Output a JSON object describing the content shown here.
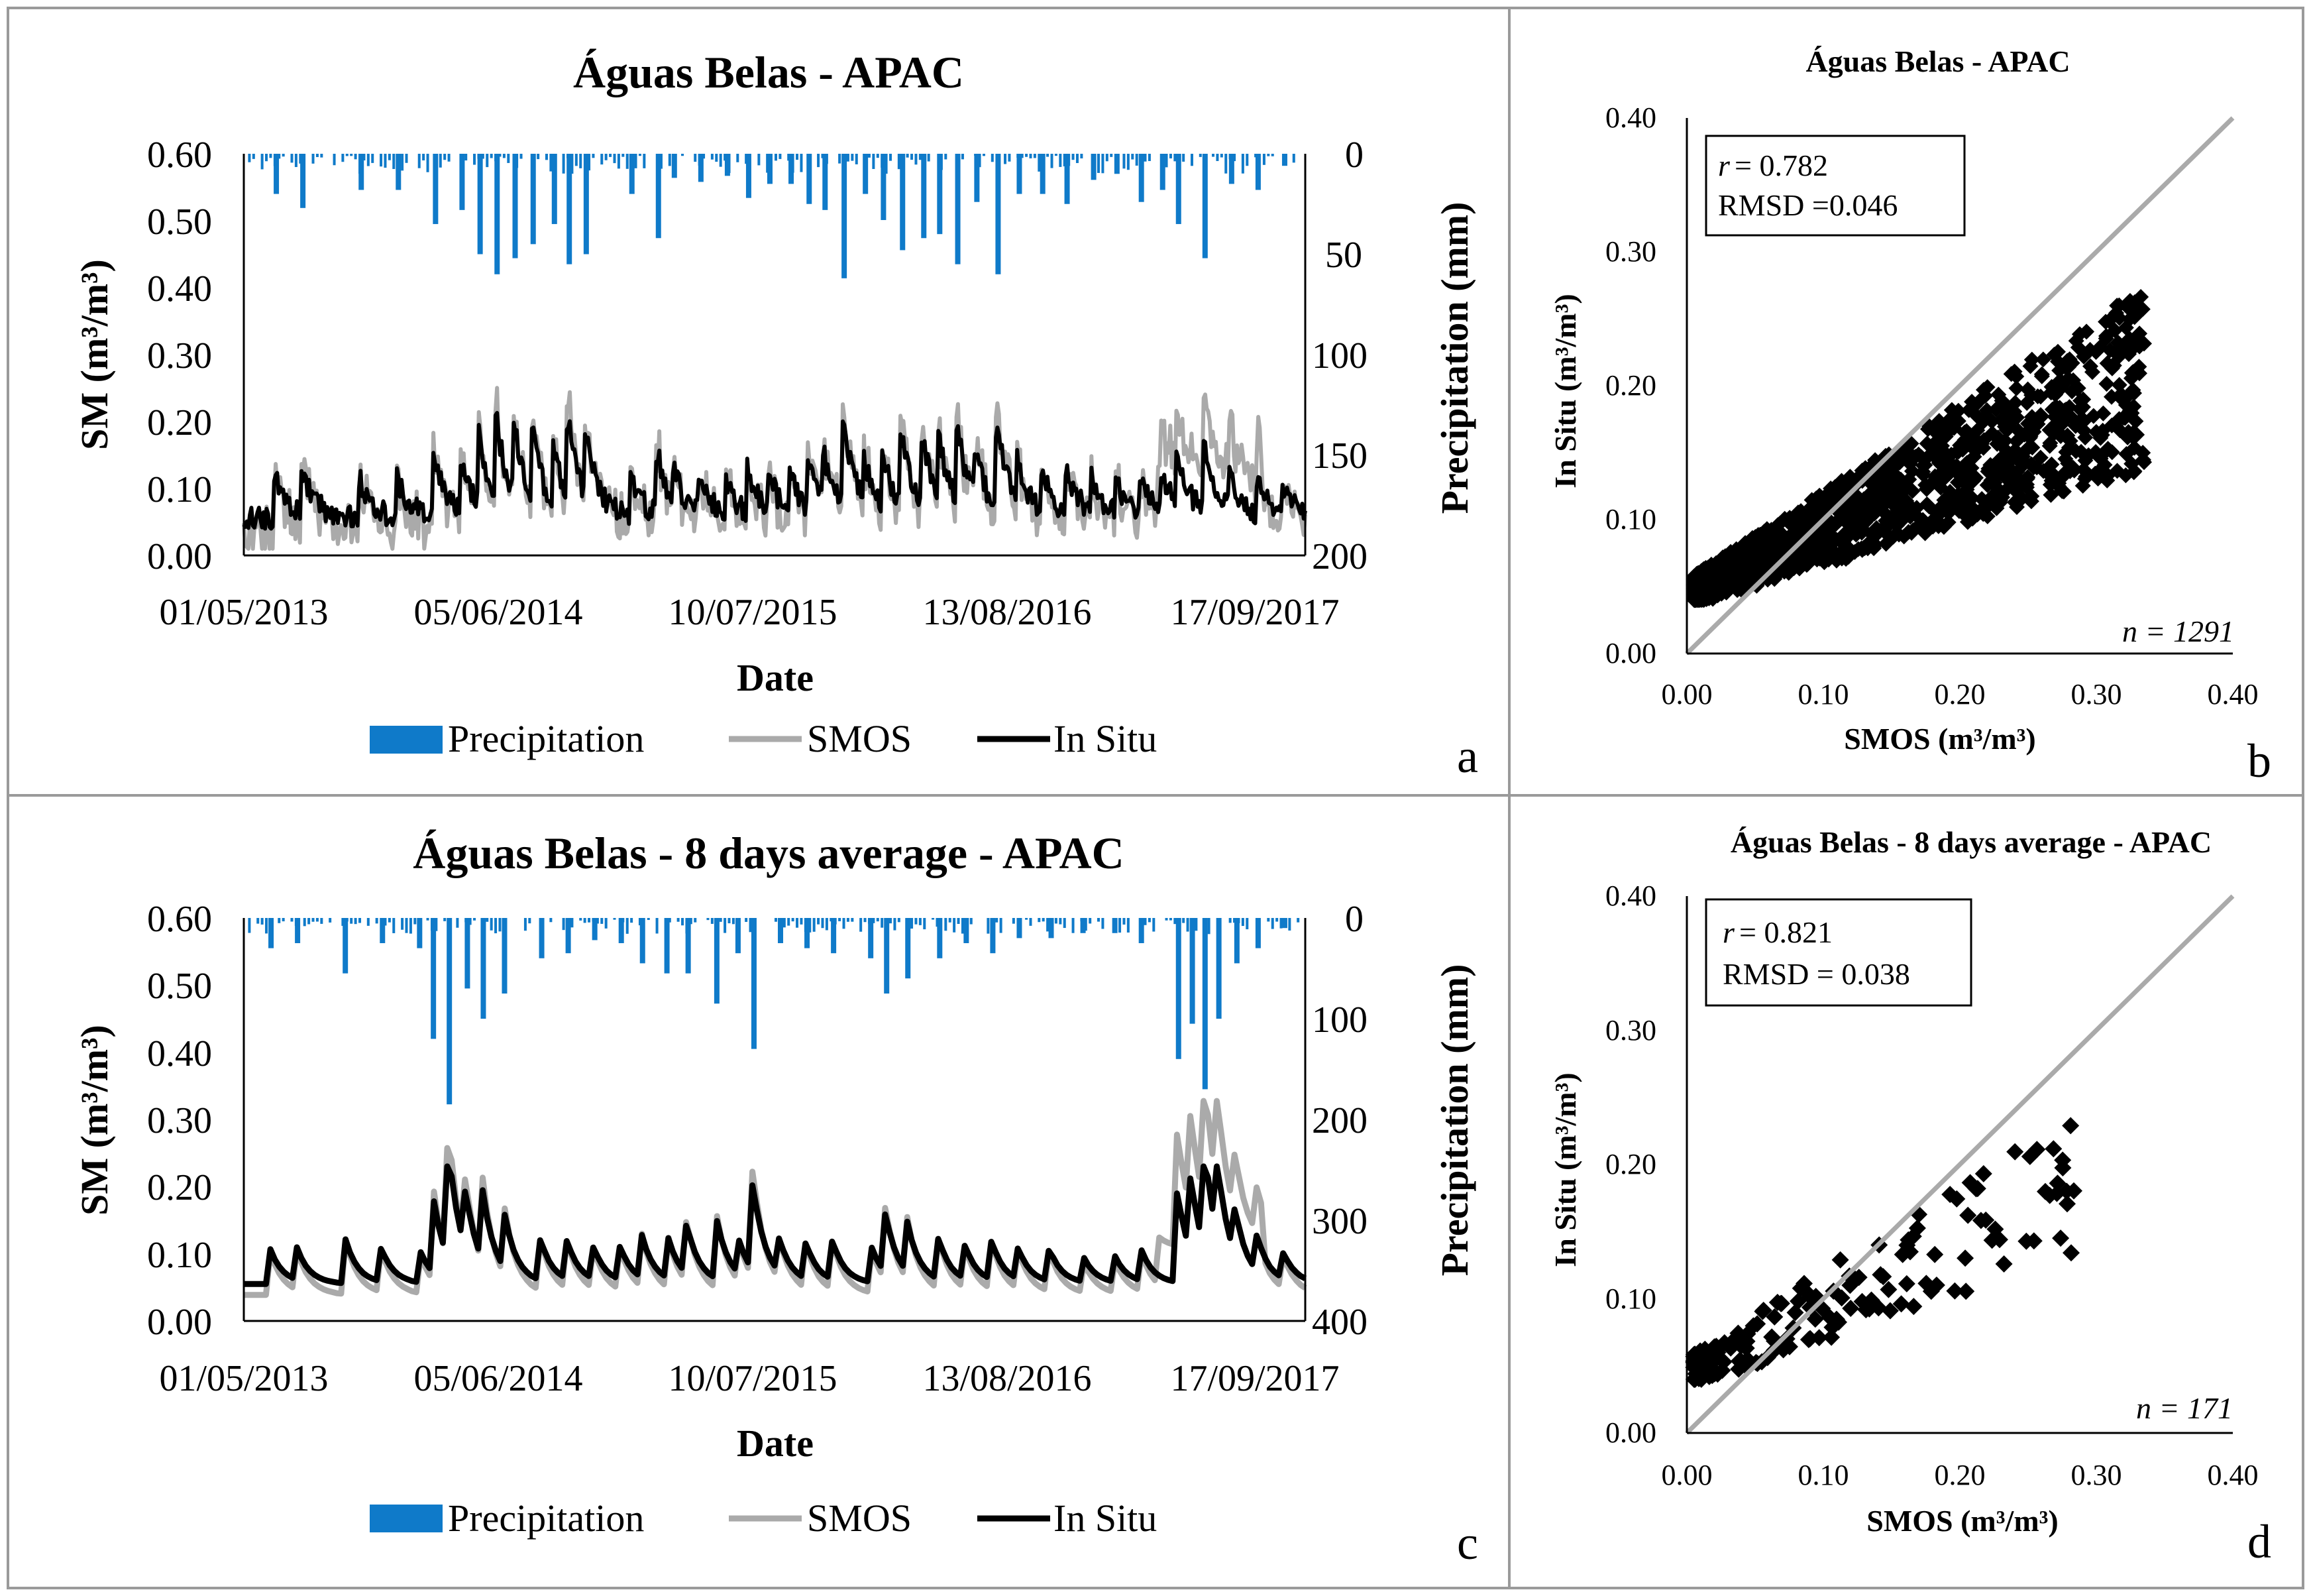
{
  "panels": {
    "a": {
      "letter": "a"
    },
    "b": {
      "letter": "b"
    },
    "c": {
      "letter": "c"
    },
    "d": {
      "letter": "d"
    }
  },
  "chart_data": [
    {
      "id": "a",
      "type": "bar+line",
      "title": "Águas Belas - APAC",
      "xlabel": "Date",
      "ylabel": "SM (m³/m³)",
      "y2label": "Precipitation (mm)",
      "ylim": [
        0,
        0.6
      ],
      "y2lim": [
        0,
        200
      ],
      "y2_inverted": true,
      "yticks": [
        "0.00",
        "0.10",
        "0.20",
        "0.30",
        "0.40",
        "0.50",
        "0.60"
      ],
      "y2ticks": [
        "0",
        "50",
        "100",
        "150",
        "200"
      ],
      "xtick_labels": [
        "01/05/2013",
        "05/06/2014",
        "10/07/2015",
        "13/08/2016",
        "17/09/2017"
      ],
      "legend": [
        "Precipitation",
        "SMOS",
        "In Situ"
      ],
      "colors": {
        "precip": "#0f7ac9",
        "smos": "#aaaaaa",
        "insitu": "#000000"
      },
      "precipitation_peaks": [
        {
          "t": 0.03,
          "mm": 20
        },
        {
          "t": 0.055,
          "mm": 27
        },
        {
          "t": 0.11,
          "mm": 18
        },
        {
          "t": 0.145,
          "mm": 18
        },
        {
          "t": 0.18,
          "mm": 35
        },
        {
          "t": 0.205,
          "mm": 28
        },
        {
          "t": 0.222,
          "mm": 50
        },
        {
          "t": 0.238,
          "mm": 60
        },
        {
          "t": 0.255,
          "mm": 52
        },
        {
          "t": 0.272,
          "mm": 45
        },
        {
          "t": 0.292,
          "mm": 35
        },
        {
          "t": 0.306,
          "mm": 55
        },
        {
          "t": 0.322,
          "mm": 50
        },
        {
          "t": 0.365,
          "mm": 20
        },
        {
          "t": 0.39,
          "mm": 42
        },
        {
          "t": 0.405,
          "mm": 12
        },
        {
          "t": 0.43,
          "mm": 14
        },
        {
          "t": 0.455,
          "mm": 11
        },
        {
          "t": 0.475,
          "mm": 22
        },
        {
          "t": 0.495,
          "mm": 15
        },
        {
          "t": 0.515,
          "mm": 15
        },
        {
          "t": 0.532,
          "mm": 25
        },
        {
          "t": 0.547,
          "mm": 28
        },
        {
          "t": 0.565,
          "mm": 62
        },
        {
          "t": 0.585,
          "mm": 20
        },
        {
          "t": 0.602,
          "mm": 33
        },
        {
          "t": 0.62,
          "mm": 48
        },
        {
          "t": 0.64,
          "mm": 42
        },
        {
          "t": 0.655,
          "mm": 40
        },
        {
          "t": 0.672,
          "mm": 55
        },
        {
          "t": 0.69,
          "mm": 24
        },
        {
          "t": 0.71,
          "mm": 60
        },
        {
          "t": 0.73,
          "mm": 20
        },
        {
          "t": 0.752,
          "mm": 20
        },
        {
          "t": 0.775,
          "mm": 25
        },
        {
          "t": 0.8,
          "mm": 13
        },
        {
          "t": 0.822,
          "mm": 10
        },
        {
          "t": 0.845,
          "mm": 24
        },
        {
          "t": 0.865,
          "mm": 18
        },
        {
          "t": 0.88,
          "mm": 35
        },
        {
          "t": 0.905,
          "mm": 52
        },
        {
          "t": 0.93,
          "mm": 15
        },
        {
          "t": 0.955,
          "mm": 18
        },
        {
          "t": 0.98,
          "mm": 6
        }
      ]
    },
    {
      "id": "b",
      "type": "scatter",
      "title": "Águas Belas - APAC",
      "xlabel": "SMOS (m³/m³)",
      "ylabel": "In Situ (m³/m³)",
      "xlim": [
        0,
        0.4
      ],
      "ylim": [
        0,
        0.4
      ],
      "ticks": [
        "0.00",
        "0.10",
        "0.20",
        "0.30",
        "0.40"
      ],
      "stats": {
        "r_label": "r",
        "r_value": "= 0.782",
        "rmsd": "RMSD =0.046"
      },
      "n_label": "n = 1291",
      "n": 1291,
      "reference_line": "1:1"
    },
    {
      "id": "c",
      "type": "bar+line",
      "title": "Águas Belas - 8 days average - APAC",
      "xlabel": "Date",
      "ylabel": "SM (m³/m³)",
      "y2label": "Precipitation (mm)",
      "ylim": [
        0,
        0.6
      ],
      "y2lim": [
        0,
        400
      ],
      "y2_inverted": true,
      "yticks": [
        "0.00",
        "0.10",
        "0.20",
        "0.30",
        "0.40",
        "0.50",
        "0.60"
      ],
      "y2ticks": [
        "0",
        "100",
        "200",
        "300",
        "400"
      ],
      "xtick_labels": [
        "01/05/2013",
        "05/06/2014",
        "10/07/2015",
        "13/08/2016",
        "17/09/2017"
      ],
      "legend": [
        "Precipitation",
        "SMOS",
        "In Situ"
      ],
      "colors": {
        "precip": "#0f7ac9",
        "smos": "#aaaaaa",
        "insitu": "#000000"
      },
      "precipitation_peaks": [
        {
          "t": 0.025,
          "mm": 30
        },
        {
          "t": 0.05,
          "mm": 25
        },
        {
          "t": 0.095,
          "mm": 55
        },
        {
          "t": 0.13,
          "mm": 25
        },
        {
          "t": 0.165,
          "mm": 30
        },
        {
          "t": 0.178,
          "mm": 120
        },
        {
          "t": 0.193,
          "mm": 185
        },
        {
          "t": 0.21,
          "mm": 70
        },
        {
          "t": 0.225,
          "mm": 100
        },
        {
          "t": 0.245,
          "mm": 75
        },
        {
          "t": 0.28,
          "mm": 40
        },
        {
          "t": 0.305,
          "mm": 35
        },
        {
          "t": 0.33,
          "mm": 22
        },
        {
          "t": 0.355,
          "mm": 25
        },
        {
          "t": 0.375,
          "mm": 45
        },
        {
          "t": 0.398,
          "mm": 55
        },
        {
          "t": 0.418,
          "mm": 55
        },
        {
          "t": 0.445,
          "mm": 85
        },
        {
          "t": 0.465,
          "mm": 35
        },
        {
          "t": 0.48,
          "mm": 130
        },
        {
          "t": 0.505,
          "mm": 25
        },
        {
          "t": 0.53,
          "mm": 30
        },
        {
          "t": 0.555,
          "mm": 35
        },
        {
          "t": 0.59,
          "mm": 40
        },
        {
          "t": 0.605,
          "mm": 75
        },
        {
          "t": 0.625,
          "mm": 60
        },
        {
          "t": 0.655,
          "mm": 40
        },
        {
          "t": 0.68,
          "mm": 25
        },
        {
          "t": 0.705,
          "mm": 35
        },
        {
          "t": 0.73,
          "mm": 20
        },
        {
          "t": 0.76,
          "mm": 20
        },
        {
          "t": 0.79,
          "mm": 15
        },
        {
          "t": 0.82,
          "mm": 15
        },
        {
          "t": 0.845,
          "mm": 25
        },
        {
          "t": 0.88,
          "mm": 140
        },
        {
          "t": 0.893,
          "mm": 105
        },
        {
          "t": 0.905,
          "mm": 170
        },
        {
          "t": 0.918,
          "mm": 100
        },
        {
          "t": 0.935,
          "mm": 45
        },
        {
          "t": 0.955,
          "mm": 30
        },
        {
          "t": 0.98,
          "mm": 10
        }
      ]
    },
    {
      "id": "d",
      "type": "scatter",
      "title": "Águas Belas - 8 days average - APAC",
      "xlabel": "SMOS (m³/m³)",
      "ylabel": "In Situ (m³/m³)",
      "xlim": [
        0,
        0.4
      ],
      "ylim": [
        0,
        0.4
      ],
      "ticks": [
        "0.00",
        "0.10",
        "0.20",
        "0.30",
        "0.40"
      ],
      "stats": {
        "r_label": "r",
        "r_value": "= 0.821",
        "rmsd": "RMSD = 0.038"
      },
      "n_label": "n = 171",
      "n": 171,
      "reference_line": "1:1"
    }
  ]
}
